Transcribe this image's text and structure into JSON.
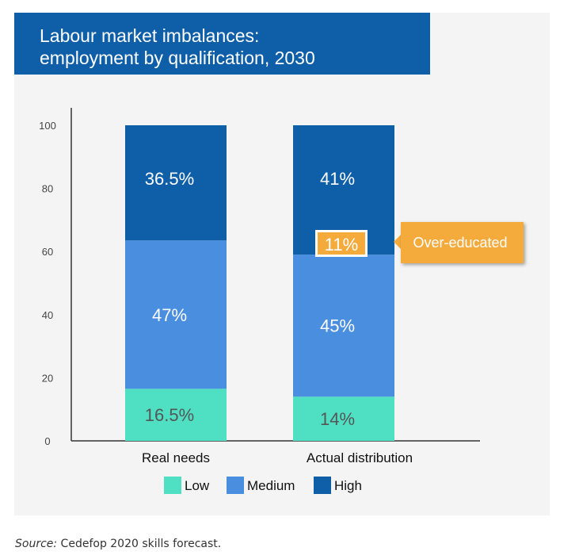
{
  "header": {
    "title_line1": "Labour market imbalances:",
    "title_line2": "employment by qualification, 2030"
  },
  "chart_data": {
    "type": "bar",
    "stacked": true,
    "title": "Labour market imbalances: employment by qualification, 2030",
    "categories": [
      "Real needs",
      "Actual distribution"
    ],
    "series": [
      {
        "name": "Low",
        "color": "#4fe0c4",
        "values": [
          16.5,
          14
        ],
        "labels": [
          "16.5%",
          "14%"
        ]
      },
      {
        "name": "Medium",
        "color": "#4a8ee0",
        "values": [
          47,
          45
        ],
        "labels": [
          "47%",
          "45%"
        ]
      },
      {
        "name": "High",
        "color": "#0f5fa8",
        "values": [
          36.5,
          41
        ],
        "labels": [
          "36.5%",
          "41%"
        ]
      }
    ],
    "yticks": [
      "100",
      "80",
      "60",
      "40",
      "20",
      "0"
    ],
    "ylim": [
      0,
      100
    ],
    "legend": [
      "Low",
      "Medium",
      "High"
    ],
    "annotation": {
      "category": "Actual distribution",
      "value_label": "11%",
      "callout": "Over-educated",
      "color": "#f5aa3c"
    }
  },
  "source": {
    "prefix": "Source:",
    "text": " Cedefop 2020 skills forecast."
  }
}
